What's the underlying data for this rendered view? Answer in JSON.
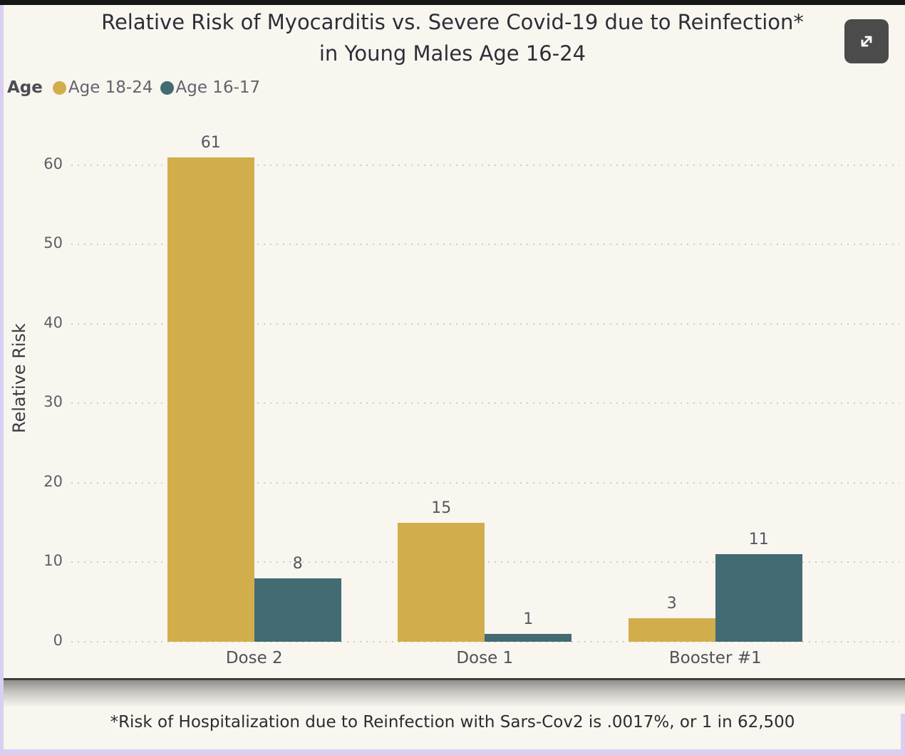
{
  "title": {
    "line1": "Relative Risk of Myocarditis vs. Severe Covid-19 due to Reinfection*",
    "line2": "in Young Males Age 16-24"
  },
  "expand_button": {
    "icon": "expand-arrows-icon"
  },
  "legend": {
    "title": "Age",
    "items": [
      {
        "label": "Age 18-24",
        "color": "#d2ad4b"
      },
      {
        "label": "Age 16-17",
        "color": "#426b73"
      }
    ]
  },
  "chart_data": {
    "type": "bar",
    "title": "Relative Risk of Myocarditis vs. Severe Covid-19 due to Reinfection* in Young Males Age 16-24",
    "categories": [
      "Dose 2",
      "Dose 1",
      "Booster #1"
    ],
    "series": [
      {
        "name": "Age 18-24",
        "color": "#d2ad4b",
        "values": [
          61,
          15,
          3
        ]
      },
      {
        "name": "Age 16-17",
        "color": "#426b73",
        "values": [
          8,
          1,
          11
        ]
      }
    ],
    "xlabel": "",
    "ylabel": "Relative Risk",
    "yticks": [
      0,
      10,
      20,
      30,
      40,
      50,
      60
    ],
    "ylim": [
      0,
      66
    ],
    "grid": "horizontal-dotted",
    "legend_position": "top-left",
    "bar_value_labels": true
  },
  "footnote": "*Risk of Hospitalization due to Reinfection with Sars-Cov2 is .0017%, or 1 in 62,500",
  "colors": {
    "background": "#f8f6ef",
    "series_gold": "#d2ad4b",
    "series_teal": "#426b73",
    "gridline": "#cfccc1",
    "top_border": "#161616",
    "edge_strip": "#d9cff3",
    "expand_button_bg": "#4b4b4b",
    "separator": "#3d3d3d"
  }
}
